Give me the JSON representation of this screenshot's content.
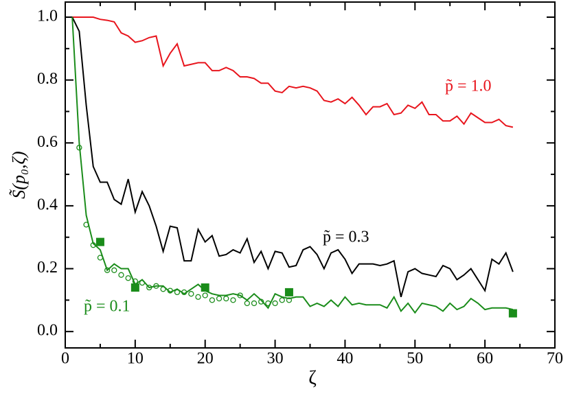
{
  "chart_data": {
    "type": "line",
    "xlabel": "ζ",
    "ylabel": "S̃(p₀,ζ)",
    "xlim": [
      0,
      70
    ],
    "ylim": [
      -0.052,
      1.048
    ],
    "xticks": [
      0,
      10,
      20,
      30,
      40,
      50,
      60,
      70
    ],
    "yticks": [
      {
        "value": 0,
        "label": "0.0"
      },
      0.2,
      0.4,
      0.6,
      0.8,
      {
        "value": 1,
        "label": "1.0"
      }
    ],
    "x": [
      1,
      2,
      3,
      4,
      5,
      6,
      7,
      8,
      9,
      10,
      11,
      12,
      13,
      14,
      15,
      16,
      17,
      18,
      19,
      20,
      21,
      22,
      23,
      24,
      25,
      26,
      27,
      28,
      29,
      30,
      31,
      32,
      33,
      34,
      35,
      36,
      37,
      38,
      39,
      40,
      41,
      42,
      43,
      44,
      45,
      46,
      47,
      48,
      49,
      50,
      51,
      52,
      53,
      54,
      55,
      56,
      57,
      58,
      59,
      60,
      61,
      62,
      63,
      64
    ],
    "series": [
      {
        "color": "#e8141c",
        "style": "line",
        "values": [
          1.0,
          1.0,
          1.0,
          1.0,
          0.993,
          0.99,
          0.985,
          0.95,
          0.94,
          0.92,
          0.925,
          0.935,
          0.94,
          0.845,
          0.885,
          0.915,
          0.845,
          0.85,
          0.855,
          0.855,
          0.83,
          0.83,
          0.84,
          0.83,
          0.81,
          0.81,
          0.805,
          0.79,
          0.79,
          0.765,
          0.76,
          0.78,
          0.775,
          0.78,
          0.775,
          0.765,
          0.735,
          0.73,
          0.74,
          0.725,
          0.745,
          0.72,
          0.69,
          0.715,
          0.715,
          0.725,
          0.69,
          0.695,
          0.72,
          0.71,
          0.73,
          0.69,
          0.69,
          0.67,
          0.67,
          0.685,
          0.66,
          0.695,
          0.68,
          0.665,
          0.665,
          0.675,
          0.655,
          0.65
        ]
      },
      {
        "color": "#000000",
        "style": "line",
        "values": [
          1.0,
          0.955,
          0.72,
          0.525,
          0.475,
          0.475,
          0.42,
          0.405,
          0.485,
          0.38,
          0.445,
          0.4,
          0.335,
          0.255,
          0.335,
          0.33,
          0.225,
          0.225,
          0.325,
          0.285,
          0.305,
          0.24,
          0.245,
          0.26,
          0.25,
          0.295,
          0.22,
          0.255,
          0.2,
          0.255,
          0.25,
          0.205,
          0.21,
          0.26,
          0.27,
          0.245,
          0.2,
          0.25,
          0.26,
          0.23,
          0.185,
          0.215,
          0.215,
          0.215,
          0.21,
          0.215,
          0.225,
          0.11,
          0.19,
          0.2,
          0.185,
          0.18,
          0.175,
          0.21,
          0.2,
          0.165,
          0.18,
          0.2,
          0.165,
          0.13,
          0.23,
          0.215,
          0.25,
          0.19
        ]
      },
      {
        "color": "#1a8c1a",
        "style": "line",
        "values": [
          1.0,
          0.6,
          0.37,
          0.28,
          0.26,
          0.195,
          0.215,
          0.2,
          0.2,
          0.15,
          0.165,
          0.14,
          0.145,
          0.145,
          0.125,
          0.135,
          0.12,
          0.135,
          0.15,
          0.13,
          0.12,
          0.115,
          0.115,
          0.12,
          0.115,
          0.1,
          0.12,
          0.1,
          0.075,
          0.12,
          0.11,
          0.105,
          0.11,
          0.11,
          0.08,
          0.09,
          0.08,
          0.1,
          0.08,
          0.11,
          0.085,
          0.09,
          0.085,
          0.085,
          0.085,
          0.075,
          0.11,
          0.065,
          0.09,
          0.06,
          0.09,
          0.085,
          0.08,
          0.065,
          0.09,
          0.07,
          0.08,
          0.105,
          0.09,
          0.07,
          0.075,
          0.075,
          0.075,
          0.07
        ]
      },
      {
        "color": "#1a8c1a",
        "style": "circle",
        "x": [
          2,
          3,
          4,
          5,
          6,
          7,
          8,
          9,
          10,
          11,
          12,
          13,
          14,
          15,
          16,
          17,
          18,
          19,
          20,
          21,
          22,
          23,
          24,
          25,
          26,
          27,
          28,
          29,
          30,
          31,
          32
        ],
        "values": [
          0.585,
          0.34,
          0.275,
          0.235,
          0.195,
          0.195,
          0.18,
          0.17,
          0.16,
          0.155,
          0.14,
          0.145,
          0.135,
          0.13,
          0.125,
          0.125,
          0.12,
          0.11,
          0.115,
          0.1,
          0.105,
          0.105,
          0.1,
          0.115,
          0.09,
          0.09,
          0.095,
          0.09,
          0.09,
          0.1,
          0.1
        ]
      },
      {
        "color": "#1a8c1a",
        "style": "square",
        "x": [
          5,
          10,
          20,
          32,
          64
        ],
        "values": [
          0.285,
          0.14,
          0.14,
          0.125,
          0.058
        ]
      }
    ],
    "annotations": [
      {
        "text": "p̃ = 1.0",
        "color": "#e8141c"
      },
      {
        "text": "p̃ = 0.3",
        "color": "#000000"
      },
      {
        "text": "p̃ = 0.1",
        "color": "#1a8c1a"
      }
    ]
  }
}
